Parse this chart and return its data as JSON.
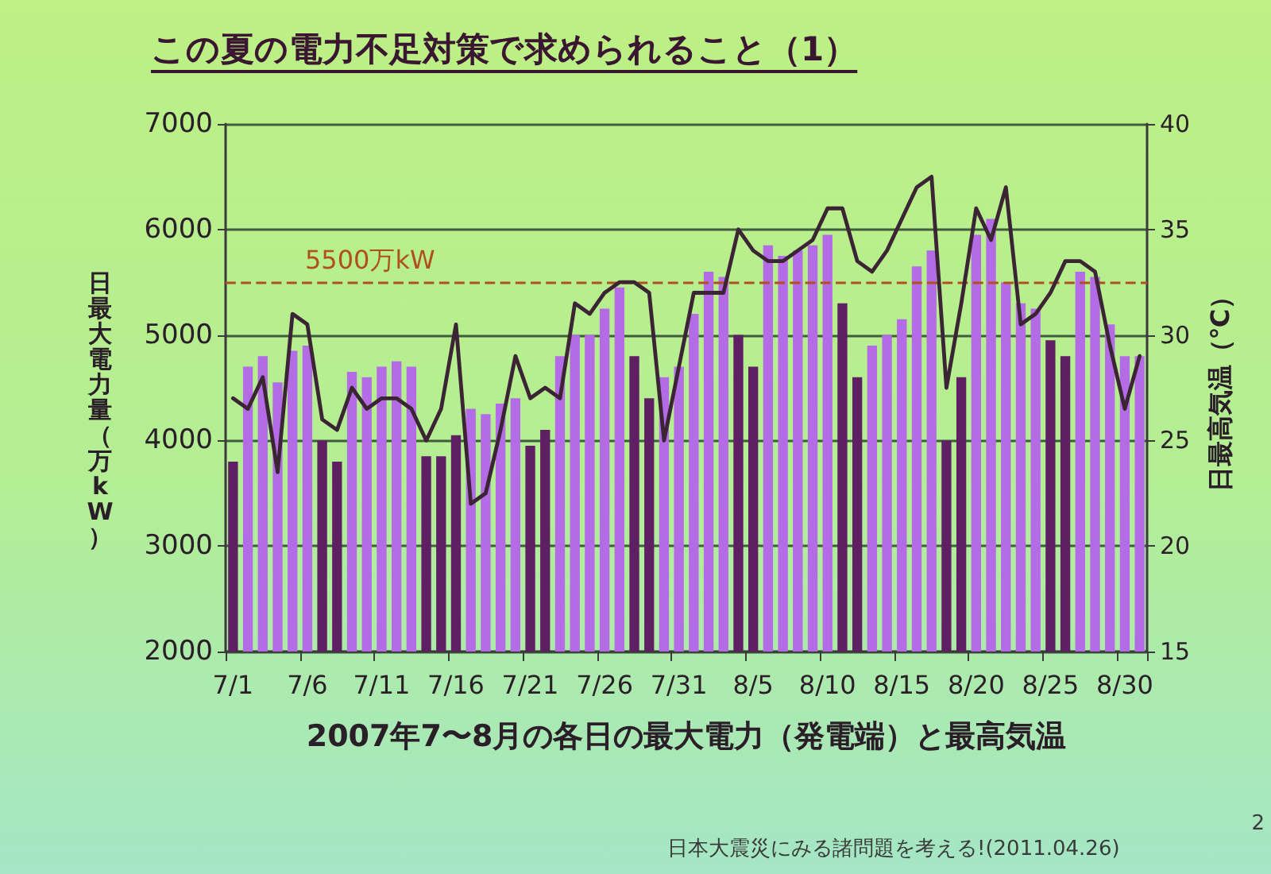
{
  "chart_data": {
    "type": "bar",
    "title": "この夏の電力不足対策で求められること（1）",
    "xlabel": "2007年7〜8月の各日の最大電力（発電端）と最高気温",
    "ylabel": "日最大電力量（万kW）",
    "y2label": "日最高気温（℃）",
    "annotations": [
      "日本大震災にみる諸問題を考える!(2011.04.26)",
      "2"
    ],
    "categories": [
      "7/1",
      null,
      null,
      null,
      null,
      "7/6",
      null,
      null,
      null,
      null,
      "7/11",
      null,
      null,
      null,
      null,
      "7/16",
      null,
      null,
      null,
      null,
      "7/21",
      null,
      null,
      null,
      null,
      "7/26",
      null,
      null,
      null,
      null,
      "7/31",
      null,
      null,
      null,
      null,
      "8/5",
      null,
      null,
      null,
      null,
      "8/10",
      null,
      null,
      null,
      null,
      "8/15",
      null,
      null,
      null,
      null,
      "8/20",
      null,
      null,
      null,
      null,
      "8/25",
      null,
      null,
      null,
      null,
      "8/30",
      null
    ],
    "series": [
      {
        "colors": [
          "#5e1f63",
          "#b36be6",
          "#b36be6",
          "#b36be6",
          "#b36be6",
          "#b36be6",
          "#5e1f63",
          "#5e1f63",
          "#b36be6",
          "#b36be6",
          "#b36be6",
          "#b36be6",
          "#b36be6",
          "#5e1f63",
          "#5e1f63",
          "#5e1f63",
          "#b36be6",
          "#b36be6",
          "#b36be6",
          "#b36be6",
          "#5e1f63",
          "#5e1f63",
          "#b36be6",
          "#b36be6",
          "#b36be6",
          "#b36be6",
          "#b36be6",
          "#5e1f63",
          "#5e1f63",
          "#b36be6",
          "#b36be6",
          "#b36be6",
          "#b36be6",
          "#b36be6",
          "#5e1f63",
          "#5e1f63",
          "#b36be6",
          "#b36be6",
          "#b36be6",
          "#b36be6",
          "#b36be6",
          "#5e1f63",
          "#5e1f63",
          "#b36be6",
          "#b36be6",
          "#b36be6",
          "#b36be6",
          "#b36be6",
          "#5e1f63",
          "#5e1f63",
          "#b36be6",
          "#b36be6",
          "#b36be6",
          "#b36be6",
          "#b36be6",
          "#5e1f63",
          "#5e1f63",
          "#b36be6",
          "#b36be6",
          "#b36be6",
          "#b36be6",
          "#b36be6"
        ],
        "values": [
          3800,
          4700,
          4800,
          4550,
          4850,
          4900,
          4000,
          3800,
          4650,
          4600,
          4700,
          4750,
          4700,
          3850,
          3850,
          4050,
          4300,
          4250,
          4350,
          4400,
          3950,
          4100,
          4800,
          5000,
          5000,
          5250,
          5450,
          4800,
          4400,
          4600,
          4700,
          5200,
          5600,
          5550,
          5000,
          4700,
          5850,
          5750,
          5800,
          5850,
          5950,
          5300,
          4600,
          4900,
          5000,
          5150,
          5650,
          5800,
          4000,
          4600,
          5950,
          6100,
          5500,
          5300,
          5250,
          4950,
          4800,
          5600,
          5550,
          5100,
          4800,
          4800
        ]
      },
      {
        "type": "line",
        "axis": "y2",
        "color": "#3b2434",
        "values": [
          27,
          26.5,
          28,
          23.5,
          31,
          30.5,
          26,
          25.5,
          27.5,
          26.5,
          27,
          27,
          26.5,
          25,
          26.5,
          30.5,
          22,
          22.5,
          25.5,
          29,
          27,
          27.5,
          27,
          31.5,
          31,
          32,
          32.5,
          32.5,
          32,
          25,
          28.5,
          32,
          32,
          32,
          35,
          34,
          33.5,
          33.5,
          34,
          34.5,
          36,
          36,
          33.5,
          33,
          34,
          35.5,
          37,
          37.5,
          27.5,
          31.5,
          36,
          34.5,
          37,
          30.5,
          31,
          32,
          33.5,
          33.5,
          33,
          29.5,
          26.5,
          29
        ]
      }
    ],
    "ylim": [
      2000,
      7000
    ],
    "yticks": [
      2000,
      3000,
      4000,
      5000,
      6000,
      7000
    ],
    "y2lim": [
      15,
      40
    ],
    "y2ticks": [
      15,
      20,
      25,
      30,
      35,
      40
    ],
    "grid": "y",
    "marker": "none",
    "ref_lines": [
      {
        "axis": "y",
        "value": 5500,
        "label": "5500万kW",
        "color": "#b0501e",
        "line_style": "dashed"
      }
    ]
  }
}
